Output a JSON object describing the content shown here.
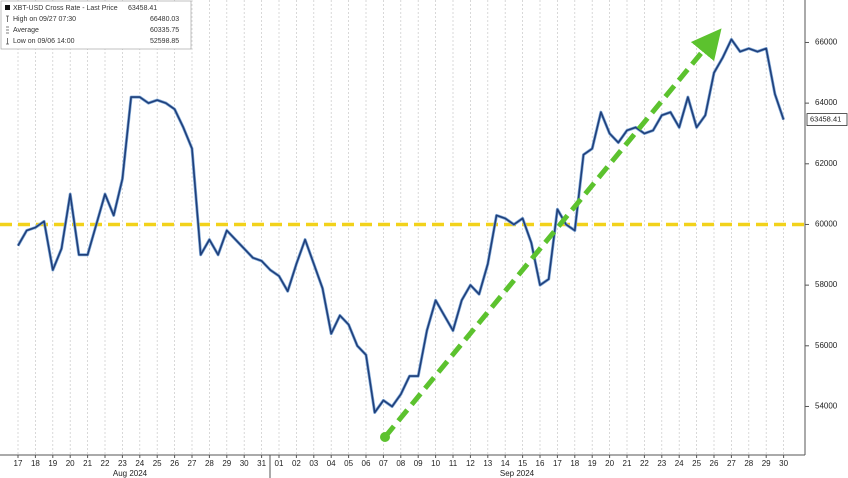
{
  "chart_data": {
    "type": "line",
    "legend": {
      "title": "XBT-USD Cross Rate - Last Price",
      "entries": [
        {
          "label": "High on 09/27 07:30",
          "value": 66480.03
        },
        {
          "label": "Average",
          "value": 60335.75
        },
        {
          "label": "Low on 09/06 14:00",
          "value": 52598.85
        }
      ]
    },
    "last_price": 63458.41,
    "month_labels": [
      "Aug 2024",
      "Sep 2024"
    ],
    "categories": [
      "17",
      null,
      "18",
      null,
      "19",
      null,
      "20",
      null,
      "21",
      null,
      "22",
      null,
      "23",
      null,
      "24",
      null,
      "25",
      null,
      "26",
      null,
      "27",
      null,
      "28",
      null,
      "29",
      null,
      "30",
      null,
      "31",
      null,
      "01",
      null,
      "02",
      null,
      "03",
      null,
      "04",
      null,
      "05",
      null,
      "06",
      null,
      "07",
      null,
      "08",
      null,
      "09",
      null,
      "10",
      null,
      "11",
      null,
      "12",
      null,
      "13",
      null,
      "14",
      null,
      "15",
      null,
      "16",
      null,
      "17",
      null,
      "18",
      null,
      "19",
      null,
      "20",
      null,
      "21",
      null,
      "22",
      null,
      "23",
      null,
      "24",
      null,
      "25",
      null,
      "26",
      null,
      "27",
      null,
      "28",
      null,
      "29",
      null,
      "30"
    ],
    "series": [
      {
        "name": "XBT-USD Cross Rate - Last Price",
        "color": "#1f3f7a",
        "values": [
          59300,
          59800,
          59900,
          60100,
          58500,
          59200,
          61000,
          59000,
          59000,
          60000,
          61000,
          60300,
          61500,
          64200,
          64200,
          64000,
          64100,
          64000,
          63800,
          63200,
          62500,
          59000,
          59500,
          59000,
          59800,
          59500,
          59200,
          58900,
          58800,
          58500,
          58300,
          57800,
          58700,
          59500,
          58700,
          57900,
          56400,
          57000,
          56700,
          56000,
          55700,
          53800,
          54200,
          54000,
          54400,
          55000,
          55000,
          56500,
          57500,
          57000,
          56500,
          57500,
          58000,
          57700,
          58700,
          60300,
          60200,
          60000,
          60200,
          59400,
          58000,
          58200,
          60500,
          60000,
          59800,
          62300,
          62500,
          63700,
          63000,
          62700,
          63100,
          63200,
          63000,
          63100,
          63600,
          63700,
          63200,
          64200,
          63200,
          63600,
          65000,
          65500,
          66100,
          65700,
          65800,
          65700,
          65800,
          64300,
          63458
        ]
      }
    ],
    "reference_line": {
      "value": 60000,
      "color": "#f2d21b"
    },
    "ylim": [
      52400,
      67400
    ],
    "yticks": [
      54000,
      56000,
      58000,
      60000,
      62000,
      64000,
      66000
    ],
    "grid": true
  }
}
